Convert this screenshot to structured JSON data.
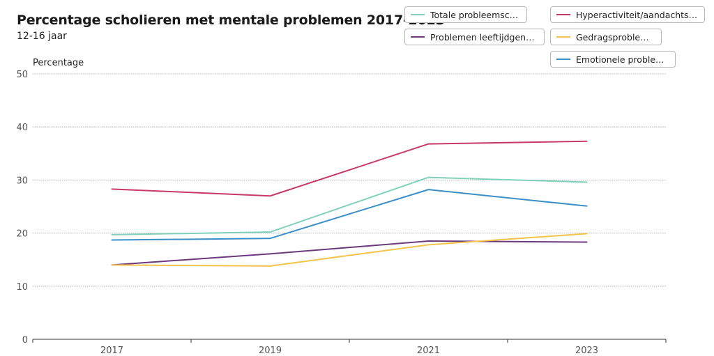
{
  "header": {
    "title": "Percentage scholieren met mentale problemen 2017-2023",
    "subtitle": "12-16 jaar"
  },
  "legend": [
    {
      "label": "Totale probleemscore",
      "color": "#7fd1b9"
    },
    {
      "label": "Hyperactiviteit/aandachtspro…",
      "color": "#c8386a"
    },
    {
      "label": "Problemen leeftijdgenoten",
      "color": "#6a3a7c"
    },
    {
      "label": "Gedragsproblemen",
      "color": "#f5c24a"
    },
    {
      "label": "Emotionele problemen",
      "color": "#3a8fc8"
    }
  ],
  "chart_data": {
    "type": "line",
    "title": "Percentage scholieren met mentale problemen 2017-2023",
    "subtitle": "12-16 jaar",
    "xlabel": "",
    "ylabel": "Percentage",
    "categories": [
      "2017",
      "2019",
      "2021",
      "2023"
    ],
    "ylim": [
      0,
      50
    ],
    "yticks": [
      0,
      10,
      20,
      30,
      40,
      50
    ],
    "grid": true,
    "legend_position": "top-right",
    "series": [
      {
        "name": "Totale probleemscore",
        "color": "#7fd1b9",
        "values": [
          19.7,
          20.2,
          30.5,
          29.6
        ]
      },
      {
        "name": "Hyperactiviteit/aandachtsproblemen",
        "color": "#c8386a",
        "values": [
          28.3,
          27.0,
          36.8,
          37.3
        ]
      },
      {
        "name": "Problemen leeftijdgenoten",
        "color": "#6a3a7c",
        "values": [
          14.0,
          16.1,
          18.5,
          18.3
        ]
      },
      {
        "name": "Gedragsproblemen",
        "color": "#f5c24a",
        "values": [
          14.0,
          13.8,
          17.8,
          19.9
        ]
      },
      {
        "name": "Emotionele problemen",
        "color": "#3a8fc8",
        "values": [
          18.7,
          19.0,
          28.2,
          25.1
        ]
      }
    ]
  }
}
